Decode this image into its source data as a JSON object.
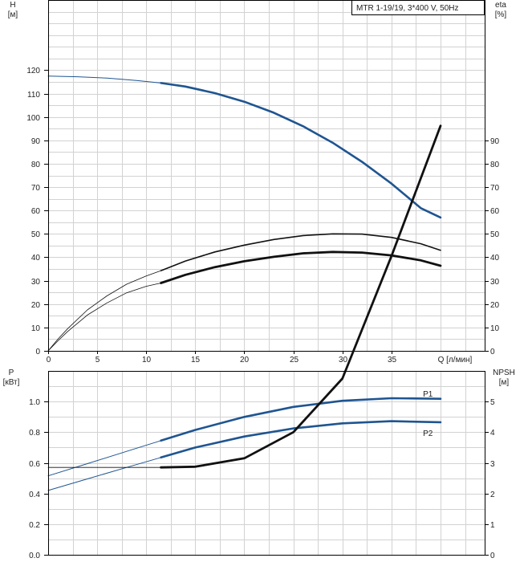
{
  "colors": {
    "blue": "#1f5591",
    "black": "#111111",
    "grid": "#d2d2d2",
    "label_blue": "#1f5591"
  },
  "chart_data": [
    {
      "id": "top",
      "type": "line",
      "legend_box": "MTR 1-19/19, 3*400 V, 50Hz",
      "legend_placement": "top-right",
      "xlabel": "Q [л/мин]",
      "ylabel_left_line1": "H",
      "ylabel_left_line2": "[м]",
      "ylabel_right_line1": "eta",
      "ylabel_right_line2": "[%]",
      "xlim": [
        0,
        44.5
      ],
      "ylim_left": [
        0,
        150
      ],
      "ylim_right": [
        0,
        150
      ],
      "x_ticks": [
        0,
        5,
        10,
        15,
        20,
        25,
        30,
        35
      ],
      "y_ticks_left": [
        0,
        10,
        20,
        30,
        40,
        50,
        60,
        70,
        80,
        90,
        100,
        110,
        120
      ],
      "y_ticks_right": [
        0,
        10,
        20,
        30,
        40,
        50,
        60,
        70,
        80,
        90
      ],
      "grid": true,
      "series": [
        {
          "key": "H",
          "color": "blue",
          "thin_x": [
            0,
            3,
            6,
            9,
            11.5
          ],
          "thin_y": [
            117.5,
            117.2,
            116.6,
            115.6,
            114.5
          ],
          "thick_x": [
            11.5,
            14,
            17,
            20,
            23,
            26,
            29,
            32,
            35,
            38,
            40
          ],
          "thick_y": [
            114.5,
            113,
            110.2,
            106.5,
            101.8,
            96,
            89,
            80.8,
            71.5,
            61,
            57
          ]
        },
        {
          "key": "eta_upper",
          "color": "black",
          "thin_x": [
            0,
            1,
            2,
            4,
            6,
            8,
            10,
            11.5
          ],
          "thin_y": [
            0,
            5,
            9.5,
            17.5,
            23.5,
            28.5,
            32,
            34.3
          ],
          "thick_x": [
            11.5,
            14,
            17,
            20,
            23,
            26,
            29,
            32,
            35,
            38,
            40
          ],
          "thick_y": [
            34.3,
            38.4,
            42.3,
            45.2,
            47.6,
            49.3,
            50,
            49.9,
            48.5,
            45.8,
            43
          ]
        },
        {
          "key": "eta_lower",
          "color": "black",
          "thin_x": [
            0,
            1,
            2,
            4,
            6,
            8,
            10,
            11.5
          ],
          "thin_y": [
            0,
            4.3,
            8.3,
            15.3,
            20.5,
            24.8,
            27.6,
            29
          ],
          "thick_x": [
            11.5,
            14,
            17,
            20,
            23,
            26,
            29,
            32,
            35,
            38,
            40
          ],
          "thick_y": [
            29,
            32.5,
            35.8,
            38.3,
            40.2,
            41.7,
            42.3,
            42,
            40.8,
            38.7,
            36.4
          ]
        }
      ]
    },
    {
      "id": "bottom",
      "type": "line",
      "ylabel_left_line1": "P",
      "ylabel_left_line2": "[кВт]",
      "ylabel_right_line1": "NPSH",
      "ylabel_right_line2": "[м]",
      "xlim": [
        0,
        44.5
      ],
      "ylim_left": [
        0,
        1.2
      ],
      "ylim_right": [
        0,
        6
      ],
      "y_ticks_left": [
        "0.0",
        "0.2",
        "0.4",
        "0.6",
        "0.8",
        "1.0"
      ],
      "y_ticks_right": [
        0,
        1,
        2,
        3,
        4,
        5
      ],
      "grid": true,
      "series": [
        {
          "key": "P1",
          "name": "P1",
          "color": "blue",
          "label_x": 39.6,
          "label_y": 1.048,
          "thin_x": [
            0,
            4,
            8,
            11.5
          ],
          "thin_y": [
            0.515,
            0.595,
            0.675,
            0.745
          ],
          "thick_x": [
            11.5,
            15,
            20,
            25,
            30,
            35,
            40
          ],
          "thick_y": [
            0.745,
            0.815,
            0.9,
            0.965,
            1.005,
            1.022,
            1.018
          ]
        },
        {
          "key": "P2",
          "name": "P2",
          "color": "blue",
          "label_x": 39.6,
          "label_y": 0.79,
          "thin_x": [
            0,
            4,
            8,
            11.5
          ],
          "thin_y": [
            0.42,
            0.495,
            0.57,
            0.635
          ],
          "thick_x": [
            11.5,
            15,
            20,
            25,
            30,
            35,
            40
          ],
          "thick_y": [
            0.635,
            0.7,
            0.772,
            0.825,
            0.858,
            0.872,
            0.865
          ]
        },
        {
          "key": "NPSH",
          "color": "black",
          "thin_x": [
            0,
            4,
            8,
            11.5
          ],
          "thin_y": [
            0.57,
            0.57,
            0.57,
            0.57
          ],
          "thick_x": [
            11.5,
            15,
            20,
            25,
            30,
            35,
            40
          ],
          "thick_y": [
            0.57,
            0.575,
            0.63,
            0.8,
            1.15,
            1.95,
            2.8
          ]
        }
      ]
    }
  ]
}
